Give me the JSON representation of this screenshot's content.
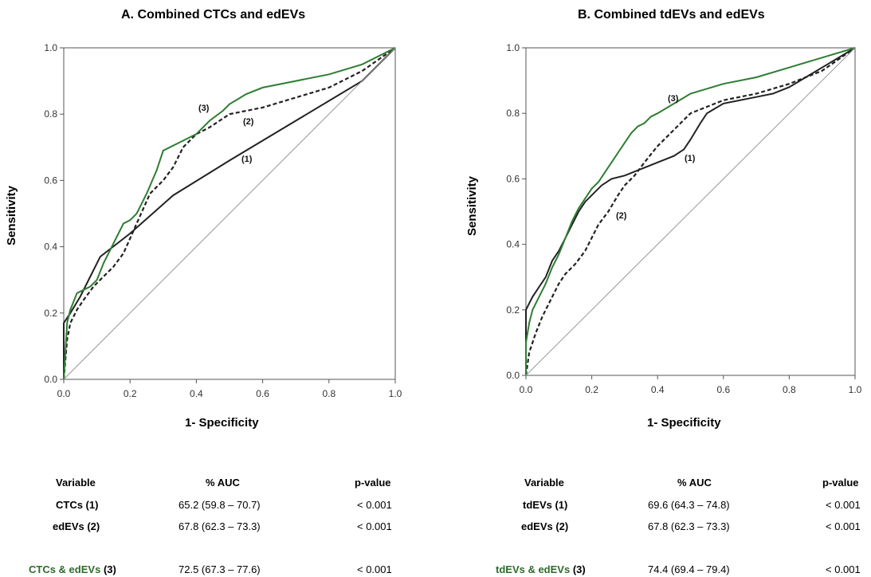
{
  "colors": {
    "combined": "#2e7d32",
    "solid": "#222222",
    "dashed": "#222222",
    "diagonal": "#9a9a9a",
    "label_green": "#2e6b2a"
  },
  "panels": [
    {
      "title": "A. Combined CTCs and edEVs",
      "ylabel": "Sensitivity",
      "xlabel": "1- Specificity",
      "tick_labels": [
        "0.0",
        "0.2",
        "0.4",
        "0.6",
        "0.8",
        "1.0"
      ],
      "curve_labels": [
        "(1)",
        "(2)",
        "(3)"
      ],
      "table": {
        "headers": [
          "Variable",
          "% AUC",
          "p-value"
        ],
        "rows": [
          {
            "variable": "CTCs (1)",
            "auc": "65.2 (59.8 – 70.7)",
            "p": "< 0.001"
          },
          {
            "variable": "edEVs (2)",
            "auc": "67.8 (62.3 – 73.3)",
            "p": "< 0.001"
          },
          {
            "variable_name": "CTCs & edEVs",
            "variable_num": "(3)",
            "auc": "72.5 (67.3 – 77.6)",
            "p": "< 0.001"
          }
        ]
      }
    },
    {
      "title": "B. Combined tdEVs and edEVs",
      "ylabel": "Sensitivity",
      "xlabel": "1- Specificity",
      "tick_labels": [
        "0.0",
        "0.2",
        "0.4",
        "0.6",
        "0.8",
        "1.0"
      ],
      "curve_labels": [
        "(1)",
        "(2)",
        "(3)"
      ],
      "table": {
        "headers": [
          "Variable",
          "% AUC",
          "p-value"
        ],
        "rows": [
          {
            "variable": "tdEVs (1)",
            "auc": "69.6 (64.3 – 74.8)",
            "p": "< 0.001"
          },
          {
            "variable": "edEVs (2)",
            "auc": "67.8 (62.3 – 73.3)",
            "p": "< 0.001"
          },
          {
            "variable_name": "tdEVs & edEVs",
            "variable_num": "(3)",
            "auc": "74.4 (69.4 – 79.4)",
            "p": "< 0.001"
          }
        ]
      }
    }
  ],
  "chart_data": [
    {
      "type": "line",
      "title": "A. Combined CTCs and edEVs",
      "xlabel": "1- Specificity",
      "ylabel": "Sensitivity",
      "xlim": [
        0,
        1
      ],
      "ylim": [
        0,
        1
      ],
      "grid": false,
      "series": [
        {
          "name": "(1)",
          "style": "solid",
          "x": [
            0.0,
            0.0,
            0.02,
            0.05,
            0.08,
            0.11,
            0.2,
            0.33,
            0.5,
            0.7,
            0.9,
            1.0
          ],
          "y": [
            0.0,
            0.17,
            0.2,
            0.25,
            0.31,
            0.37,
            0.44,
            0.555,
            0.66,
            0.78,
            0.9,
            1.0
          ]
        },
        {
          "name": "(2)",
          "style": "dashed",
          "x": [
            0.0,
            0.01,
            0.02,
            0.04,
            0.06,
            0.09,
            0.12,
            0.15,
            0.18,
            0.22,
            0.26,
            0.3,
            0.33,
            0.36,
            0.4,
            0.44,
            0.5,
            0.6,
            0.7,
            0.8,
            0.9,
            1.0
          ],
          "y": [
            0.0,
            0.12,
            0.17,
            0.21,
            0.24,
            0.28,
            0.31,
            0.34,
            0.38,
            0.47,
            0.56,
            0.6,
            0.64,
            0.7,
            0.74,
            0.76,
            0.8,
            0.82,
            0.85,
            0.88,
            0.93,
            1.0
          ]
        },
        {
          "name": "(3)",
          "style": "solid",
          "x": [
            0.0,
            0.01,
            0.02,
            0.04,
            0.06,
            0.08,
            0.1,
            0.12,
            0.15,
            0.18,
            0.2,
            0.22,
            0.25,
            0.28,
            0.3,
            0.32,
            0.36,
            0.4,
            0.44,
            0.48,
            0.5,
            0.55,
            0.6,
            0.7,
            0.8,
            0.9,
            1.0
          ],
          "y": [
            0.0,
            0.17,
            0.21,
            0.26,
            0.27,
            0.28,
            0.3,
            0.35,
            0.41,
            0.47,
            0.48,
            0.5,
            0.56,
            0.63,
            0.69,
            0.7,
            0.72,
            0.74,
            0.78,
            0.81,
            0.83,
            0.86,
            0.88,
            0.9,
            0.92,
            0.95,
            1.0
          ]
        },
        {
          "name": "diagonal",
          "style": "reference",
          "x": [
            0,
            1
          ],
          "y": [
            0,
            1
          ]
        }
      ]
    },
    {
      "type": "line",
      "title": "B. Combined tdEVs and edEVs",
      "xlabel": "1- Specificity",
      "ylabel": "Sensitivity",
      "xlim": [
        0,
        1
      ],
      "ylim": [
        0,
        1
      ],
      "grid": false,
      "series": [
        {
          "name": "(1)",
          "style": "solid",
          "x": [
            0.0,
            0.0,
            0.01,
            0.02,
            0.04,
            0.06,
            0.08,
            0.1,
            0.12,
            0.14,
            0.16,
            0.18,
            0.2,
            0.23,
            0.26,
            0.3,
            0.35,
            0.4,
            0.45,
            0.48,
            0.5,
            0.53,
            0.55,
            0.6,
            0.7,
            0.75,
            0.8,
            0.9,
            1.0
          ],
          "y": [
            0.0,
            0.2,
            0.22,
            0.24,
            0.27,
            0.3,
            0.35,
            0.38,
            0.42,
            0.46,
            0.5,
            0.53,
            0.55,
            0.58,
            0.6,
            0.61,
            0.63,
            0.65,
            0.67,
            0.69,
            0.72,
            0.77,
            0.8,
            0.83,
            0.85,
            0.86,
            0.88,
            0.94,
            1.0
          ]
        },
        {
          "name": "(2)",
          "style": "dashed",
          "x": [
            0.0,
            0.01,
            0.03,
            0.05,
            0.08,
            0.1,
            0.12,
            0.15,
            0.18,
            0.2,
            0.22,
            0.25,
            0.28,
            0.3,
            0.33,
            0.36,
            0.4,
            0.44,
            0.48,
            0.5,
            0.55,
            0.6,
            0.7,
            0.8,
            0.9,
            1.0
          ],
          "y": [
            0.0,
            0.07,
            0.13,
            0.18,
            0.24,
            0.28,
            0.31,
            0.34,
            0.38,
            0.42,
            0.46,
            0.5,
            0.55,
            0.58,
            0.61,
            0.65,
            0.7,
            0.74,
            0.78,
            0.8,
            0.82,
            0.84,
            0.86,
            0.89,
            0.93,
            1.0
          ]
        },
        {
          "name": "(3)",
          "style": "solid",
          "x": [
            0.0,
            0.0,
            0.01,
            0.02,
            0.04,
            0.06,
            0.08,
            0.1,
            0.12,
            0.14,
            0.16,
            0.18,
            0.2,
            0.22,
            0.24,
            0.26,
            0.28,
            0.3,
            0.32,
            0.34,
            0.36,
            0.38,
            0.4,
            0.45,
            0.5,
            0.6,
            0.7,
            0.8,
            0.9,
            1.0
          ],
          "y": [
            0.0,
            0.1,
            0.16,
            0.2,
            0.24,
            0.28,
            0.33,
            0.37,
            0.42,
            0.47,
            0.51,
            0.54,
            0.57,
            0.59,
            0.62,
            0.65,
            0.68,
            0.71,
            0.74,
            0.76,
            0.77,
            0.79,
            0.8,
            0.83,
            0.86,
            0.89,
            0.91,
            0.94,
            0.97,
            1.0
          ]
        },
        {
          "name": "diagonal",
          "style": "reference",
          "x": [
            0,
            1
          ],
          "y": [
            0,
            1
          ]
        }
      ]
    }
  ]
}
